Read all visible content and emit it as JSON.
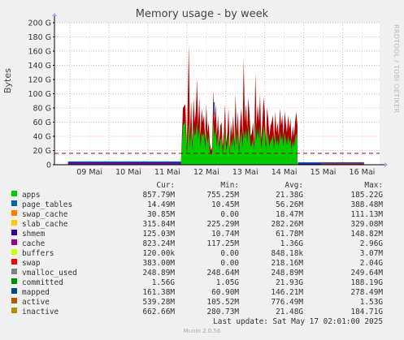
{
  "title": "Memory usage - by week",
  "side_label": "RRDTOOL / TOBI OETIKER",
  "chart_data": {
    "type": "area",
    "title": "Memory usage - by week",
    "ylabel": "Bytes",
    "xlabel": "",
    "x_tick_labels": [
      "09 Mai",
      "10 Mai",
      "11 Mai",
      "12 Mai",
      "13 Mai",
      "14 Mai",
      "15 Mai",
      "16 Mai"
    ],
    "x_range_days": [
      8.6,
      16.95
    ],
    "ylim": [
      0,
      200
    ],
    "y_unit": "G",
    "y_tick_values": [
      0,
      20,
      40,
      60,
      80,
      100,
      120,
      140,
      160,
      180,
      200
    ],
    "y_tick_labels": [
      "0",
      "20 G",
      "40 G",
      "60 G",
      "80 G",
      "100 G",
      "120 G",
      "140 G",
      "160 G",
      "180 G",
      "200 G"
    ],
    "grid": true,
    "threshold_line_G": 16,
    "data_start_day": 8.95,
    "data_end_day": 16.55,
    "spike_window_days": [
      11.85,
      14.85
    ],
    "spike_series": {
      "day": [
        11.85,
        11.9,
        11.96,
        12.0,
        12.05,
        12.08,
        12.11,
        12.14,
        12.17,
        12.2,
        12.23,
        12.26,
        12.29,
        12.32,
        12.35,
        12.38,
        12.41,
        12.44,
        12.47,
        12.5,
        12.53,
        12.56,
        12.59,
        12.62,
        12.65,
        12.68,
        12.71,
        12.74,
        12.77,
        12.8,
        12.83,
        12.86,
        12.89,
        12.92,
        12.95,
        12.98,
        13.01,
        13.04,
        13.07,
        13.1,
        13.13,
        13.16,
        13.19,
        13.22,
        13.25,
        13.28,
        13.31,
        13.34,
        13.37,
        13.4,
        13.43,
        13.46,
        13.49,
        13.52,
        13.55,
        13.58,
        13.61,
        13.64,
        13.67,
        13.7,
        13.73,
        13.76,
        13.79,
        13.82,
        13.85,
        13.88,
        13.91,
        13.94,
        13.97,
        14.0,
        14.03,
        14.06,
        14.09,
        14.12,
        14.15,
        14.18,
        14.21,
        14.24,
        14.27,
        14.3,
        14.33,
        14.36,
        14.39,
        14.42,
        14.45,
        14.48,
        14.51,
        14.54,
        14.57,
        14.6,
        14.63,
        14.66,
        14.69,
        14.72,
        14.75,
        14.78,
        14.81,
        14.84
      ],
      "total_G": [
        5,
        80,
        85,
        25,
        170,
        40,
        90,
        30,
        95,
        60,
        75,
        120,
        55,
        95,
        40,
        80,
        60,
        70,
        35,
        85,
        45,
        60,
        30,
        20,
        25,
        105,
        60,
        85,
        40,
        70,
        30,
        55,
        60,
        25,
        45,
        85,
        30,
        45,
        80,
        20,
        60,
        40,
        70,
        30,
        100,
        45,
        75,
        25,
        60,
        80,
        40,
        150,
        60,
        85,
        50,
        95,
        70,
        40,
        45,
        60,
        30,
        130,
        55,
        85,
        60,
        100,
        35,
        60,
        95,
        75,
        30,
        80,
        65,
        40,
        55,
        60,
        70,
        35,
        75,
        45,
        60,
        40,
        80,
        55,
        70,
        40,
        75,
        60,
        45,
        70,
        50,
        65,
        35,
        55,
        40,
        60,
        75,
        55
      ],
      "apps_G": [
        3,
        55,
        60,
        15,
        60,
        25,
        50,
        20,
        55,
        40,
        45,
        60,
        35,
        55,
        25,
        45,
        40,
        45,
        22,
        50,
        30,
        40,
        18,
        14,
        16,
        60,
        38,
        50,
        25,
        45,
        20,
        35,
        38,
        16,
        28,
        50,
        20,
        28,
        45,
        14,
        36,
        25,
        42,
        20,
        55,
        28,
        45,
        16,
        36,
        48,
        25,
        50,
        36,
        50,
        30,
        55,
        42,
        25,
        28,
        36,
        20,
        60,
        33,
        50,
        36,
        55,
        22,
        36,
        55,
        45,
        20,
        48,
        38,
        25,
        33,
        36,
        42,
        22,
        45,
        28,
        36,
        25,
        48,
        33,
        42,
        25,
        45,
        36,
        28,
        42,
        30,
        38,
        22,
        33,
        25,
        36,
        45,
        33
      ]
    },
    "series": [
      {
        "name": "apps",
        "color": "#00cc00",
        "cur": "857.79M",
        "min": "755.25M",
        "avg": "21.38G",
        "max": "185.22G"
      },
      {
        "name": "page_tables",
        "color": "#0066b3",
        "cur": "14.49M",
        "min": "10.45M",
        "avg": "56.26M",
        "max": "388.48M"
      },
      {
        "name": "swap_cache",
        "color": "#ff8000",
        "cur": "30.85M",
        "min": "0.00",
        "avg": "18.47M",
        "max": "111.13M"
      },
      {
        "name": "slab_cache",
        "color": "#ffcc00",
        "cur": "315.84M",
        "min": "225.29M",
        "avg": "282.26M",
        "max": "329.08M"
      },
      {
        "name": "shmem",
        "color": "#330099",
        "cur": "125.03M",
        "min": "10.74M",
        "avg": "61.78M",
        "max": "148.82M"
      },
      {
        "name": "cache",
        "color": "#990099",
        "cur": "823.24M",
        "min": "117.25M",
        "avg": "1.36G",
        "max": "2.96G"
      },
      {
        "name": "buffers",
        "color": "#ccff00",
        "cur": "120.00k",
        "min": "0.00",
        "avg": "848.18k",
        "max": "3.07M"
      },
      {
        "name": "swap",
        "color": "#ff0000",
        "cur": "383.00M",
        "min": "0.00",
        "avg": "218.16M",
        "max": "2.04G"
      },
      {
        "name": "vmalloc_used",
        "color": "#808080",
        "cur": "248.89M",
        "min": "248.64M",
        "avg": "248.89M",
        "max": "249.64M"
      },
      {
        "name": "committed",
        "color": "#008f00",
        "cur": "1.56G",
        "min": "1.05G",
        "avg": "21.93G",
        "max": "188.19G"
      },
      {
        "name": "mapped",
        "color": "#00487d",
        "cur": "161.38M",
        "min": "60.90M",
        "avg": "146.21M",
        "max": "278.49M"
      },
      {
        "name": "active",
        "color": "#b35a00",
        "cur": "539.28M",
        "min": "105.52M",
        "avg": "776.49M",
        "max": "1.53G"
      },
      {
        "name": "inactive",
        "color": "#b38f00",
        "cur": "662.66M",
        "min": "280.73M",
        "avg": "21.48G",
        "max": "184.71G"
      }
    ]
  },
  "legend_header": {
    "cur": "Cur:",
    "min": "Min:",
    "avg": "Avg:",
    "max": "Max:"
  },
  "last_update": "Last update: Sat May 17 02:01:00 2025",
  "footer": "Munin 2.0.56"
}
